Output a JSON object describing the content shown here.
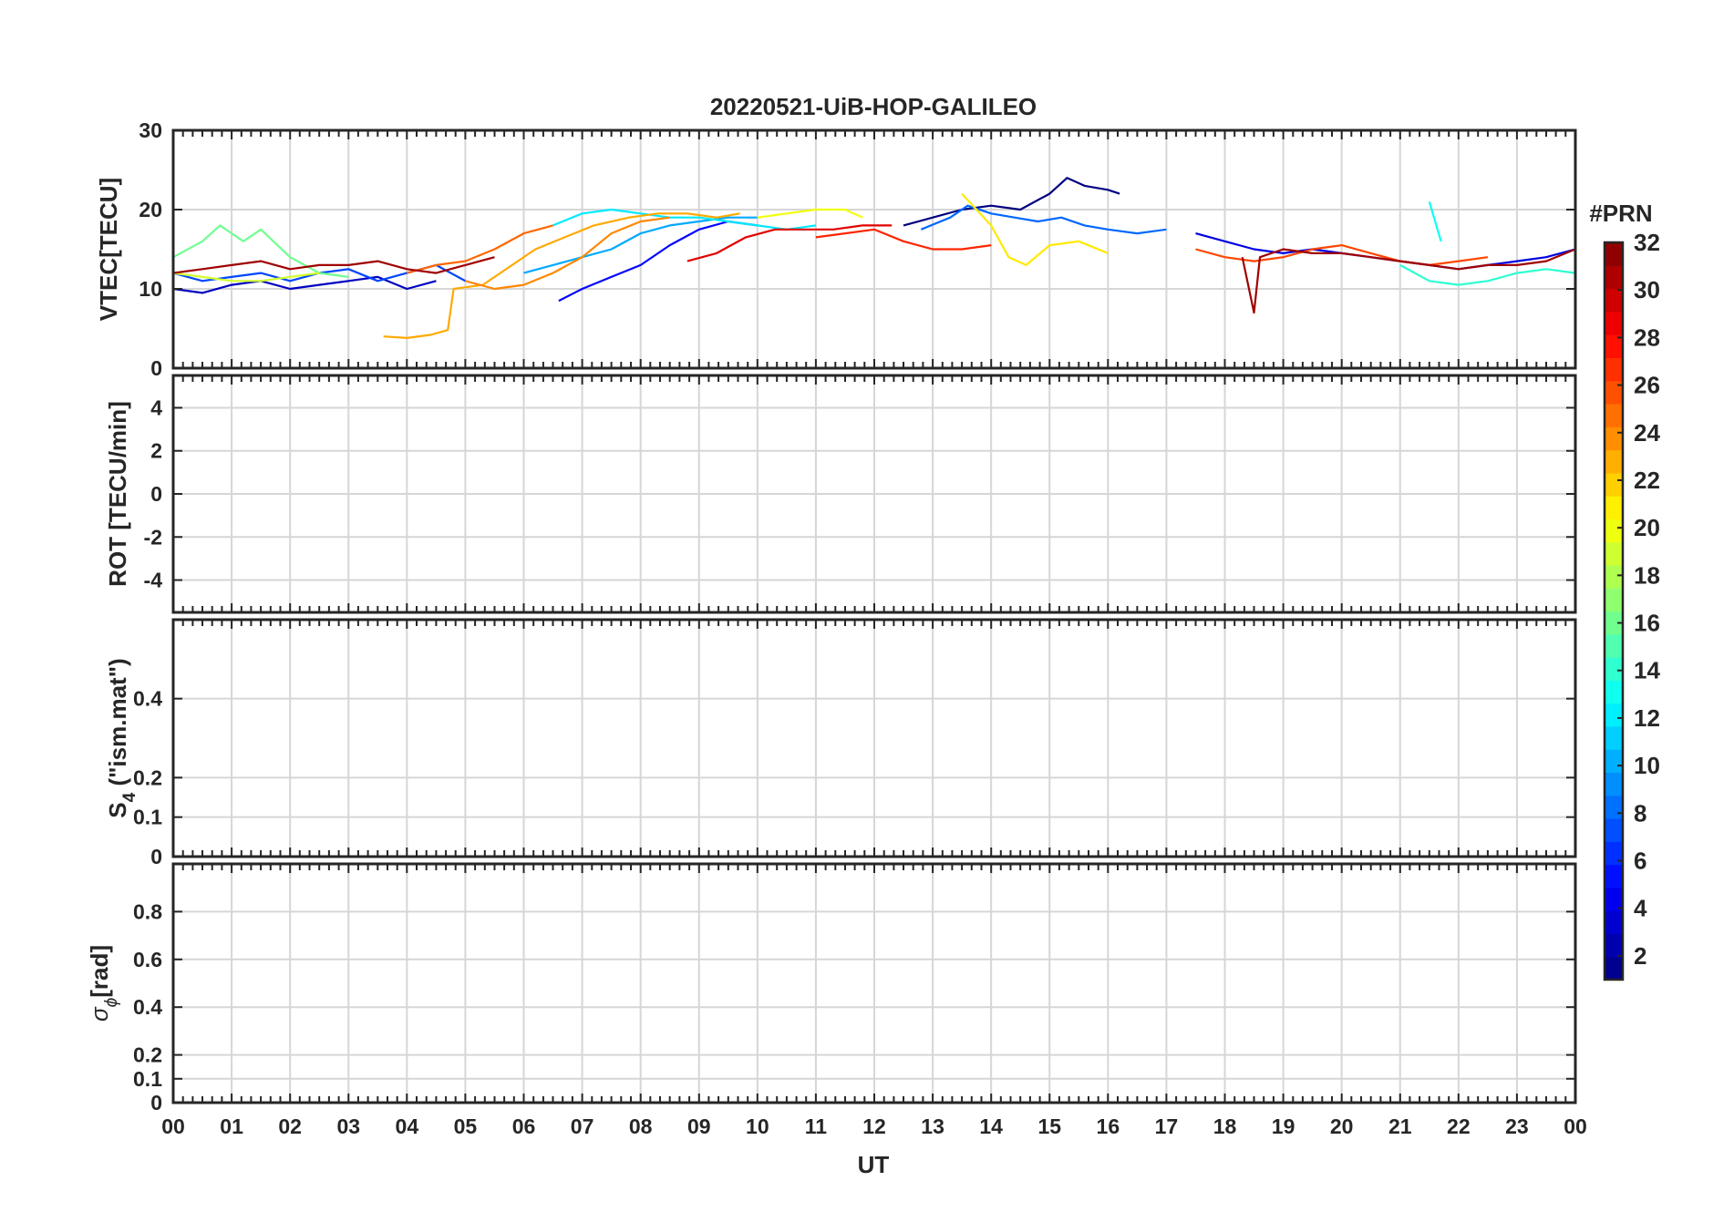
{
  "figure": {
    "title": "20220521-UiB-HOP-GALILEO",
    "xlabel": "UT",
    "x_tick_labels": [
      "00",
      "01",
      "02",
      "03",
      "04",
      "05",
      "06",
      "07",
      "08",
      "09",
      "10",
      "11",
      "12",
      "13",
      "14",
      "15",
      "16",
      "17",
      "18",
      "19",
      "20",
      "21",
      "22",
      "23",
      "00"
    ]
  },
  "colorbar": {
    "title": "#PRN",
    "ticks": [
      2,
      4,
      6,
      8,
      10,
      12,
      14,
      16,
      18,
      20,
      22,
      24,
      26,
      28,
      30,
      32
    ],
    "range": [
      1,
      32
    ],
    "colormap": "jet",
    "levels": 32
  },
  "panels": [
    {
      "id": "vtec",
      "ylabel": "VTEC[TECU]",
      "ylim": [
        0,
        30
      ],
      "yticks": [
        0,
        10,
        20,
        30
      ]
    },
    {
      "id": "rot",
      "ylabel": "ROT [TECU/min]",
      "ylim": [
        -5.5,
        5.5
      ],
      "yticks": [
        -4,
        -2,
        0,
        2,
        4
      ]
    },
    {
      "id": "s4",
      "ylabel_main": "S",
      "ylabel_sub": "4",
      "ylabel_rest": " (\"ism.mat\")",
      "ylim": [
        0,
        0.6
      ],
      "yticks": [
        0,
        0.1,
        0.2,
        0.4
      ]
    },
    {
      "id": "sigma",
      "ylabel_main": "σ",
      "ylabel_sub": "ϕ",
      "ylabel_rest": "[rad]",
      "ylim": [
        0,
        1
      ],
      "yticks": [
        0,
        0.1,
        0.2,
        0.4,
        0.6,
        0.8
      ]
    }
  ],
  "chart_data": {
    "type": "line",
    "title": "20220521-UiB-HOP-GALILEO",
    "x_unit": "UT hour",
    "xlim": [
      0,
      24
    ],
    "series": [
      {
        "prn": 1,
        "panel": "vtec",
        "points": [
          [
            12.5,
            18
          ],
          [
            13,
            19
          ],
          [
            13.5,
            20
          ],
          [
            14,
            20.5
          ],
          [
            14.5,
            20
          ],
          [
            15,
            22
          ],
          [
            15.3,
            24
          ],
          [
            15.6,
            23
          ],
          [
            16,
            22.5
          ],
          [
            16.2,
            22
          ]
        ]
      },
      {
        "prn": 3,
        "panel": "vtec",
        "points": [
          [
            0,
            10
          ],
          [
            0.5,
            9.5
          ],
          [
            1,
            10.5
          ],
          [
            1.5,
            11
          ],
          [
            2,
            10
          ],
          [
            2.5,
            10.5
          ],
          [
            3,
            11
          ],
          [
            3.5,
            11.5
          ],
          [
            4,
            10
          ],
          [
            4.5,
            11
          ]
        ]
      },
      {
        "prn": 4,
        "panel": "vtec",
        "points": [
          [
            17.5,
            17
          ],
          [
            18,
            16
          ],
          [
            18.5,
            15
          ],
          [
            19,
            14.5
          ],
          [
            19.5,
            15
          ],
          [
            20,
            14.5
          ],
          [
            20.5,
            14
          ],
          [
            21,
            13.5
          ],
          [
            21.5,
            13
          ],
          [
            22,
            12.5
          ],
          [
            22.5,
            13
          ],
          [
            23,
            13.5
          ],
          [
            23.5,
            14
          ],
          [
            24,
            15
          ]
        ]
      },
      {
        "prn": 5,
        "panel": "vtec",
        "points": [
          [
            6.6,
            8.5
          ],
          [
            7,
            10
          ],
          [
            7.5,
            11.5
          ],
          [
            8,
            13
          ],
          [
            8.5,
            15.5
          ],
          [
            9,
            17.5
          ],
          [
            9.5,
            18.5
          ],
          [
            10,
            18
          ]
        ]
      },
      {
        "prn": 7,
        "panel": "vtec",
        "points": [
          [
            0,
            12
          ],
          [
            0.5,
            11
          ],
          [
            1,
            11.5
          ],
          [
            1.5,
            12
          ],
          [
            2,
            11
          ],
          [
            2.5,
            12
          ],
          [
            3,
            12.5
          ],
          [
            3.5,
            11
          ],
          [
            4,
            12
          ],
          [
            4.5,
            13
          ],
          [
            5,
            11
          ]
        ]
      },
      {
        "prn": 8,
        "panel": "vtec",
        "points": [
          [
            12.8,
            17.5
          ],
          [
            13.3,
            19
          ],
          [
            13.6,
            20.5
          ],
          [
            14,
            19.5
          ],
          [
            14.4,
            19
          ],
          [
            14.8,
            18.5
          ],
          [
            15.2,
            19
          ],
          [
            15.6,
            18
          ],
          [
            16,
            17.5
          ],
          [
            16.5,
            17
          ],
          [
            17,
            17.5
          ]
        ]
      },
      {
        "prn": 10,
        "panel": "vtec",
        "points": [
          [
            6,
            12
          ],
          [
            6.5,
            13
          ],
          [
            7,
            14
          ],
          [
            7.5,
            15
          ],
          [
            8,
            17
          ],
          [
            8.5,
            18
          ],
          [
            9,
            18.5
          ],
          [
            9.5,
            19
          ],
          [
            10,
            19
          ]
        ]
      },
      {
        "prn": 12,
        "panel": "vtec",
        "points": [
          [
            6.5,
            18
          ],
          [
            7,
            19.5
          ],
          [
            7.5,
            20
          ],
          [
            8,
            19.5
          ],
          [
            8.5,
            19
          ],
          [
            9,
            19
          ],
          [
            9.5,
            18.5
          ],
          [
            10,
            18
          ],
          [
            10.5,
            17.5
          ],
          [
            11,
            18
          ]
        ]
      },
      {
        "prn": 13,
        "panel": "vtec",
        "points": [
          [
            21.5,
            21
          ],
          [
            21.7,
            16
          ]
        ]
      },
      {
        "prn": 14,
        "panel": "vtec",
        "points": [
          [
            21,
            13
          ],
          [
            21.5,
            11
          ],
          [
            22,
            10.5
          ],
          [
            22.5,
            11
          ],
          [
            23,
            12
          ],
          [
            23.5,
            12.5
          ],
          [
            24,
            12
          ]
        ]
      },
      {
        "prn": 16,
        "panel": "vtec",
        "points": [
          [
            0,
            14
          ],
          [
            0.5,
            16
          ],
          [
            0.8,
            18
          ],
          [
            1.2,
            16
          ],
          [
            1.5,
            17.5
          ],
          [
            2,
            14
          ],
          [
            2.5,
            12
          ],
          [
            3,
            11.5
          ]
        ]
      },
      {
        "prn": 19,
        "panel": "vtec",
        "points": [
          [
            0,
            12
          ],
          [
            0.5,
            11.5
          ],
          [
            1,
            11
          ],
          [
            1.5,
            11
          ],
          [
            2,
            11.5
          ],
          [
            2.5,
            12
          ]
        ]
      },
      {
        "prn": 20,
        "panel": "vtec",
        "points": [
          [
            10,
            19
          ],
          [
            10.5,
            19.5
          ],
          [
            11,
            20
          ],
          [
            11.5,
            20
          ],
          [
            11.8,
            19
          ]
        ]
      },
      {
        "prn": 21,
        "panel": "vtec",
        "points": [
          [
            13.5,
            22
          ],
          [
            14,
            18
          ],
          [
            14.3,
            14
          ],
          [
            14.6,
            13
          ],
          [
            15,
            15.5
          ],
          [
            15.5,
            16
          ],
          [
            16,
            14.5
          ]
        ]
      },
      {
        "prn": 23,
        "panel": "vtec",
        "points": [
          [
            3.6,
            4
          ],
          [
            4,
            3.8
          ],
          [
            4.4,
            4.2
          ],
          [
            4.7,
            4.8
          ],
          [
            4.8,
            10
          ],
          [
            5.3,
            10.5
          ],
          [
            5.8,
            13
          ],
          [
            6.2,
            15
          ],
          [
            6.7,
            16.5
          ],
          [
            7.2,
            18
          ],
          [
            7.8,
            19
          ],
          [
            8.3,
            19.5
          ],
          [
            8.8,
            19.5
          ],
          [
            9.3,
            19
          ],
          [
            9.7,
            19.5
          ]
        ]
      },
      {
        "prn": 24,
        "panel": "vtec",
        "points": [
          [
            5,
            11
          ],
          [
            5.5,
            10
          ],
          [
            6,
            10.5
          ],
          [
            6.5,
            12
          ],
          [
            7,
            14
          ],
          [
            7.5,
            17
          ],
          [
            8,
            18.5
          ],
          [
            8.5,
            19
          ]
        ]
      },
      {
        "prn": 25,
        "panel": "vtec",
        "points": [
          [
            4,
            12
          ],
          [
            4.5,
            13
          ],
          [
            5,
            13.5
          ],
          [
            5.5,
            15
          ],
          [
            6,
            17
          ],
          [
            6.5,
            18
          ]
        ]
      },
      {
        "prn": 26,
        "panel": "vtec",
        "points": [
          [
            17.5,
            15
          ],
          [
            18,
            14
          ],
          [
            18.5,
            13.5
          ],
          [
            19,
            14
          ],
          [
            19.5,
            15
          ],
          [
            20,
            15.5
          ],
          [
            20.5,
            14.5
          ],
          [
            21,
            13.5
          ],
          [
            21.5,
            13
          ],
          [
            22,
            13.5
          ],
          [
            22.5,
            14
          ]
        ]
      },
      {
        "prn": 27,
        "panel": "vtec",
        "points": [
          [
            11,
            16.5
          ],
          [
            11.5,
            17
          ],
          [
            12,
            17.5
          ],
          [
            12.5,
            16
          ],
          [
            13,
            15
          ],
          [
            13.5,
            15
          ],
          [
            14,
            15.5
          ]
        ]
      },
      {
        "prn": 29,
        "panel": "vtec",
        "points": [
          [
            8.8,
            13.5
          ],
          [
            9.3,
            14.5
          ],
          [
            9.8,
            16.5
          ],
          [
            10.3,
            17.5
          ],
          [
            10.8,
            17.5
          ],
          [
            11.3,
            17.5
          ],
          [
            11.8,
            18
          ],
          [
            12.3,
            18
          ]
        ]
      },
      {
        "prn": 31,
        "panel": "vtec",
        "points": [
          [
            0,
            12
          ],
          [
            0.5,
            12.5
          ],
          [
            1,
            13
          ],
          [
            1.5,
            13.5
          ],
          [
            2,
            12.5
          ],
          [
            2.5,
            13
          ],
          [
            3,
            13
          ],
          [
            3.5,
            13.5
          ],
          [
            4,
            12.5
          ],
          [
            4.5,
            12
          ],
          [
            5,
            13
          ],
          [
            5.5,
            14
          ]
        ]
      },
      {
        "prn": 31,
        "panel": "vtec",
        "points": [
          [
            18.3,
            14
          ],
          [
            18.5,
            7
          ],
          [
            18.6,
            14
          ],
          [
            19,
            15
          ],
          [
            19.5,
            14.5
          ],
          [
            20,
            14.5
          ],
          [
            20.5,
            14
          ],
          [
            21,
            13.5
          ],
          [
            21.5,
            13
          ],
          [
            22,
            12.5
          ],
          [
            22.5,
            13
          ],
          [
            23,
            13
          ],
          [
            23.5,
            13.5
          ],
          [
            24,
            15
          ]
        ]
      }
    ]
  }
}
